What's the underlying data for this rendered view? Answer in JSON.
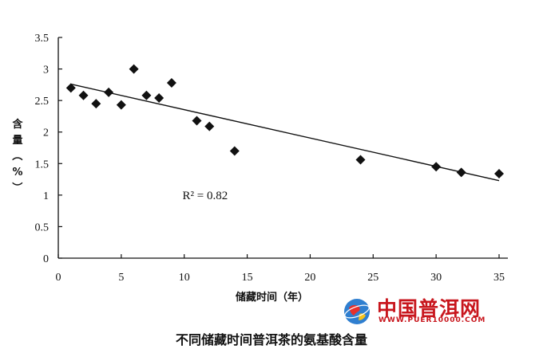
{
  "chart_data": {
    "type": "scatter",
    "title": "不同储藏时间普洱茶的氨基酸含量",
    "xlabel": "储藏时间（年）",
    "ylabel": "含量（%）",
    "xlim": [
      0,
      35
    ],
    "ylim": [
      0,
      3.5
    ],
    "xticks": [
      "0",
      "5",
      "10",
      "15",
      "20",
      "25",
      "30",
      "35"
    ],
    "yticks": [
      "0",
      "0.5",
      "1",
      "1.5",
      "2",
      "2.5",
      "3",
      "3.5"
    ],
    "grid": false,
    "marker": "diamond",
    "points": [
      {
        "x": 1,
        "y": 2.7
      },
      {
        "x": 2,
        "y": 2.58
      },
      {
        "x": 3,
        "y": 2.45
      },
      {
        "x": 4,
        "y": 2.63
      },
      {
        "x": 5,
        "y": 2.43
      },
      {
        "x": 6,
        "y": 3.0
      },
      {
        "x": 7,
        "y": 2.58
      },
      {
        "x": 8,
        "y": 2.54
      },
      {
        "x": 9,
        "y": 2.78
      },
      {
        "x": 11,
        "y": 2.18
      },
      {
        "x": 12,
        "y": 2.09
      },
      {
        "x": 14,
        "y": 1.7
      },
      {
        "x": 24,
        "y": 1.56
      },
      {
        "x": 30,
        "y": 1.45
      },
      {
        "x": 32,
        "y": 1.36
      },
      {
        "x": 35,
        "y": 1.34
      }
    ],
    "trendline": {
      "x0": 1,
      "y0": 2.76,
      "x1": 35,
      "y1": 1.23
    },
    "annotation": "R² = 0.82",
    "annotation_at": {
      "x": 11,
      "y": 1.0
    }
  },
  "watermark": {
    "title": "中国普洱网",
    "url": "WWW.PUER10000.COM",
    "color": "#c8161d",
    "logo_icon": "globe-icon"
  }
}
